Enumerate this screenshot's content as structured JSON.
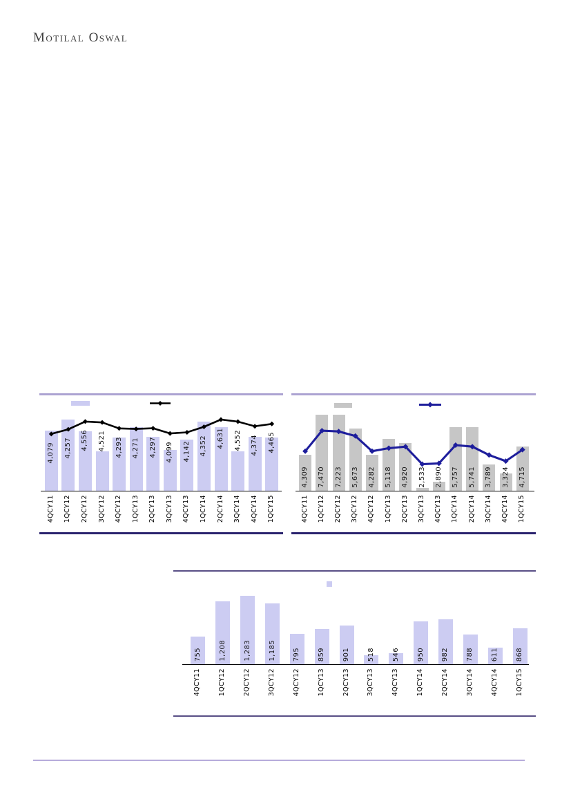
{
  "page": {
    "logo_text": "Motilal Oswal"
  },
  "chart_data": [
    {
      "id": "quarterly-left",
      "type": "bar+line",
      "title": "",
      "categories": [
        "4QCY11",
        "1QCY12",
        "2QCY12",
        "3QCY12",
        "4QCY12",
        "1QCY13",
        "2QCY13",
        "3QCY13",
        "4QCY13",
        "1QCY14",
        "2QCY14",
        "3QCY14",
        "4QCY14",
        "1QCY15"
      ],
      "legend_position": "top, swatches only (no visible text)",
      "series": [
        {
          "name": "bars (unlabeled)",
          "type": "bar",
          "color": "#ccccf2",
          "values_norm_est": [
            0.757,
            0.896,
            0.748,
            0.496,
            0.67,
            0.8,
            0.678,
            0.513,
            0.643,
            0.87,
            0.8,
            0.496,
            0.678,
            0.67
          ]
        },
        {
          "name": "line (labeled values)",
          "type": "line",
          "color": "#000000",
          "values": [
            4079,
            4257,
            4556,
            4521,
            4293,
            4271,
            4297,
            4099,
            4142,
            4352,
            4631,
            4552,
            4374,
            4465
          ],
          "axis_min_est": 1900,
          "axis_max_est": 4950
        }
      ],
      "data_labels": [
        "4,079",
        "4,257",
        "4,556",
        "4,521",
        "4,293",
        "4,271",
        "4,297",
        "4,099",
        "4,142",
        "4,352",
        "4,631",
        "4,552",
        "4,374",
        "4,465"
      ],
      "data_label_of": "line",
      "grid": "off"
    },
    {
      "id": "quarterly-right",
      "type": "bar+line",
      "title": "",
      "categories": [
        "4QCY11",
        "1QCY12",
        "2QCY12",
        "3QCY12",
        "4QCY12",
        "1QCY13",
        "2QCY13",
        "3QCY13",
        "4QCY13",
        "1QCY14",
        "2QCY14",
        "3QCY14",
        "4QCY14",
        "1QCY15"
      ],
      "legend_position": "top, swatches only (no visible text)",
      "series": [
        {
          "name": "bars (labeled values)",
          "type": "bar",
          "color": "#c6c6c6",
          "values": [
            4309,
            7470,
            7223,
            5673,
            4282,
            5118,
            4920,
            2533,
            2890,
            5757,
            5741,
            3789,
            3324,
            4715
          ],
          "axis_min_est": 2400,
          "axis_max_est": 6400,
          "clipped_at_top": true
        },
        {
          "name": "line (unlabeled)",
          "type": "line",
          "color": "#1e1e9c",
          "values_norm_est": [
            0.52,
            0.79,
            0.78,
            0.72,
            0.52,
            0.56,
            0.58,
            0.35,
            0.36,
            0.6,
            0.58,
            0.47,
            0.39,
            0.54
          ]
        }
      ],
      "data_labels": [
        "4,309",
        "7,470",
        "7,223",
        "5,673",
        "4,282",
        "5,118",
        "4,920",
        "2,533",
        "2,890",
        "5,757",
        "5,741",
        "3,789",
        "3,324",
        "4,715"
      ],
      "data_label_of": "bar",
      "grid": "off"
    },
    {
      "id": "quarterly-bottom",
      "type": "bar",
      "title": "",
      "categories": [
        "4QCY11",
        "1QCY12",
        "2QCY12",
        "3QCY12",
        "4QCY12",
        "1QCY13",
        "2QCY13",
        "3QCY13",
        "4QCY13",
        "1QCY14",
        "2QCY14",
        "3QCY14",
        "4QCY14",
        "1QCY15"
      ],
      "legend_position": "top, small swatch only (no visible text)",
      "series": [
        {
          "name": "bars (labeled values)",
          "type": "bar",
          "color": "#ccccf2",
          "values": [
            755,
            1208,
            1283,
            1185,
            795,
            859,
            901,
            518,
            546,
            950,
            982,
            788,
            611,
            868
          ],
          "axis_min_est": 400,
          "axis_max_est": 1300
        }
      ],
      "data_labels": [
        "755",
        "1,208",
        "1,283",
        "1,185",
        "795",
        "859",
        "901",
        "518",
        "546",
        "950",
        "982",
        "788",
        "611",
        "868"
      ],
      "data_label_of": "bar",
      "grid": "off"
    }
  ]
}
